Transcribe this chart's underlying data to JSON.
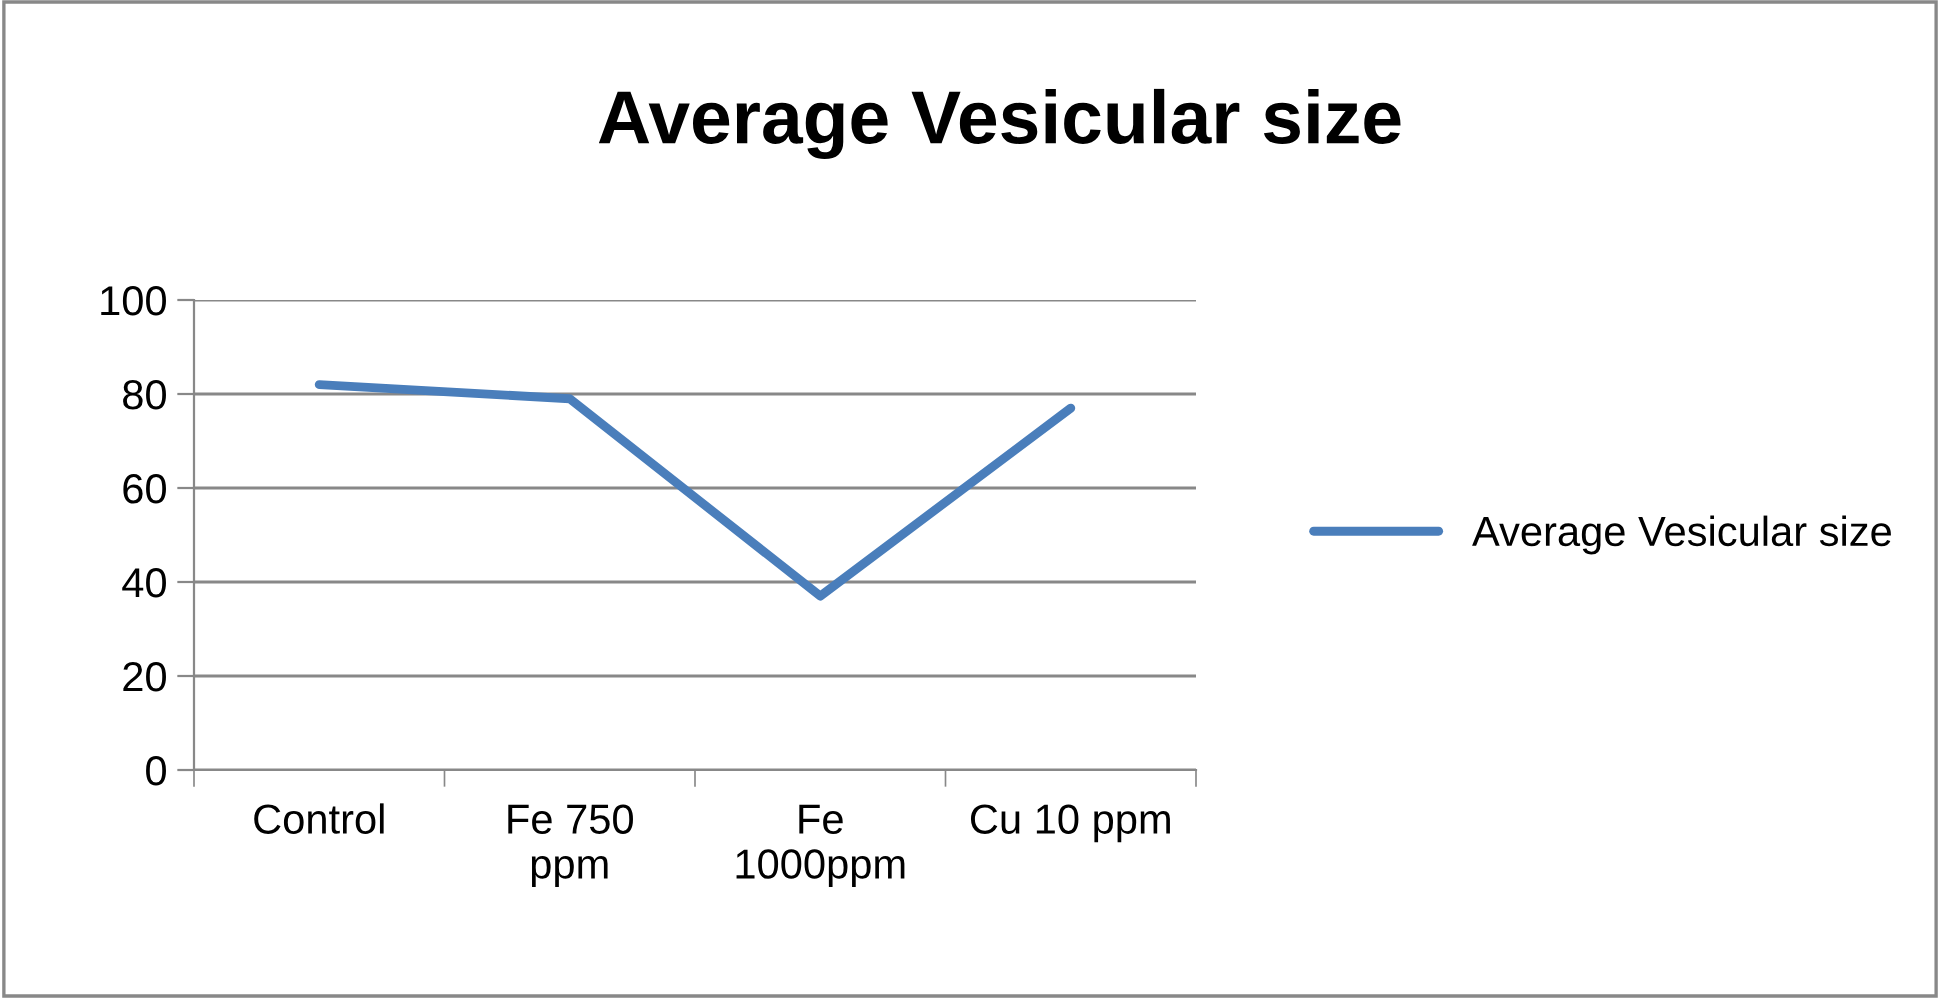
{
  "chart_data": {
    "type": "line",
    "title": "Average Vesicular size",
    "categories": [
      "Control",
      "Fe 750\nppm",
      "Fe\n1000ppm",
      "Cu 10 ppm"
    ],
    "series": [
      {
        "name": "Average Vesicular size",
        "color": "#4a7ebb",
        "values": [
          82,
          79,
          37,
          77
        ]
      }
    ],
    "ylim": [
      0,
      100
    ],
    "yticks": [
      0,
      20,
      40,
      60,
      80,
      100
    ],
    "grid": "y",
    "legend": "right",
    "marker": "none",
    "line_style": "solid"
  }
}
